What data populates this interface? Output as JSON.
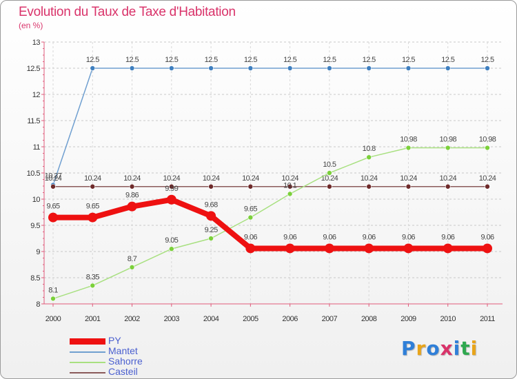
{
  "header": {
    "title": "Evolution du Taux de Taxe d'Habitation",
    "subtitle": "(en %)"
  },
  "logo": {
    "text": "Proxiti",
    "colors": [
      "#2f7fd8",
      "#e8a41a",
      "#2f7fd8",
      "#d9336a",
      "#2f7fd8",
      "#2fa84f",
      "#e8a41a"
    ]
  },
  "chart_data": {
    "type": "line",
    "title": "Evolution du Taux de Taxe d'Habitation",
    "subtitle": "(en %)",
    "xlabel": "",
    "ylabel": "",
    "x": [
      "2000",
      "2001",
      "2002",
      "2003",
      "2004",
      "2005",
      "2006",
      "2007",
      "2008",
      "2009",
      "2010",
      "2011"
    ],
    "ylim": [
      8,
      13
    ],
    "yticks": [
      "8",
      "8.5",
      "9",
      "9.5",
      "10",
      "10.5",
      "11",
      "11.5",
      "12",
      "12.5",
      "13"
    ],
    "ytick_values": [
      8,
      8.5,
      9,
      9.5,
      10,
      10.5,
      11,
      11.5,
      12,
      12.5,
      13
    ],
    "grid": "dashed-horizontal",
    "legend_position": "bottom-left",
    "series": [
      {
        "name": "Mantet",
        "color": "#6f9fd0",
        "marker_color": "#3f7fbf",
        "values": [
          10.27,
          12.5,
          12.5,
          12.5,
          12.5,
          12.5,
          12.5,
          12.5,
          12.5,
          12.5,
          12.5,
          12.5
        ],
        "labels": [
          "10.27",
          "12.5",
          "12.5",
          "12.5",
          "12.5",
          "12.5",
          "12.5",
          "12.5",
          "12.5",
          "12.5",
          "12.5",
          "12.5"
        ]
      },
      {
        "name": "Casteil",
        "color": "#8a5a5a",
        "marker_color": "#6e2a2a",
        "values": [
          10.24,
          10.24,
          10.24,
          10.24,
          10.24,
          10.24,
          10.24,
          10.24,
          10.24,
          10.24,
          10.24,
          10.24
        ],
        "labels": [
          "10.24",
          "10.24",
          "10.24",
          "10.24",
          "10.24",
          "10.24",
          "10.24",
          "10.24",
          "10.24",
          "10.24",
          "10.24",
          "10.24"
        ]
      },
      {
        "name": "Sahorre",
        "color": "#a8e080",
        "marker_color": "#7bd03a",
        "values": [
          8.1,
          8.35,
          8.7,
          9.05,
          9.25,
          9.65,
          10.1,
          10.5,
          10.8,
          10.98,
          10.98,
          10.98
        ],
        "labels": [
          "8.1",
          "8.35",
          "8.7",
          "9.05",
          "9.25",
          "9.65",
          "10.1",
          "10.5",
          "10.8",
          "10.98",
          "10.98",
          "10.98"
        ]
      },
      {
        "name": "PY",
        "color": "#ee1111",
        "marker_color": "#ee1111",
        "values": [
          9.65,
          9.65,
          9.86,
          9.99,
          9.68,
          9.06,
          9.06,
          9.06,
          9.06,
          9.06,
          9.06,
          9.06
        ],
        "labels": [
          "9.65",
          "9.65",
          "9.86",
          "9.99",
          "9.68",
          "9.06",
          "9.06",
          "9.06",
          "9.06",
          "9.06",
          "9.06",
          "9.06"
        ]
      }
    ],
    "legend": [
      "PY",
      "Mantet",
      "Sahorre",
      "Casteil"
    ]
  }
}
